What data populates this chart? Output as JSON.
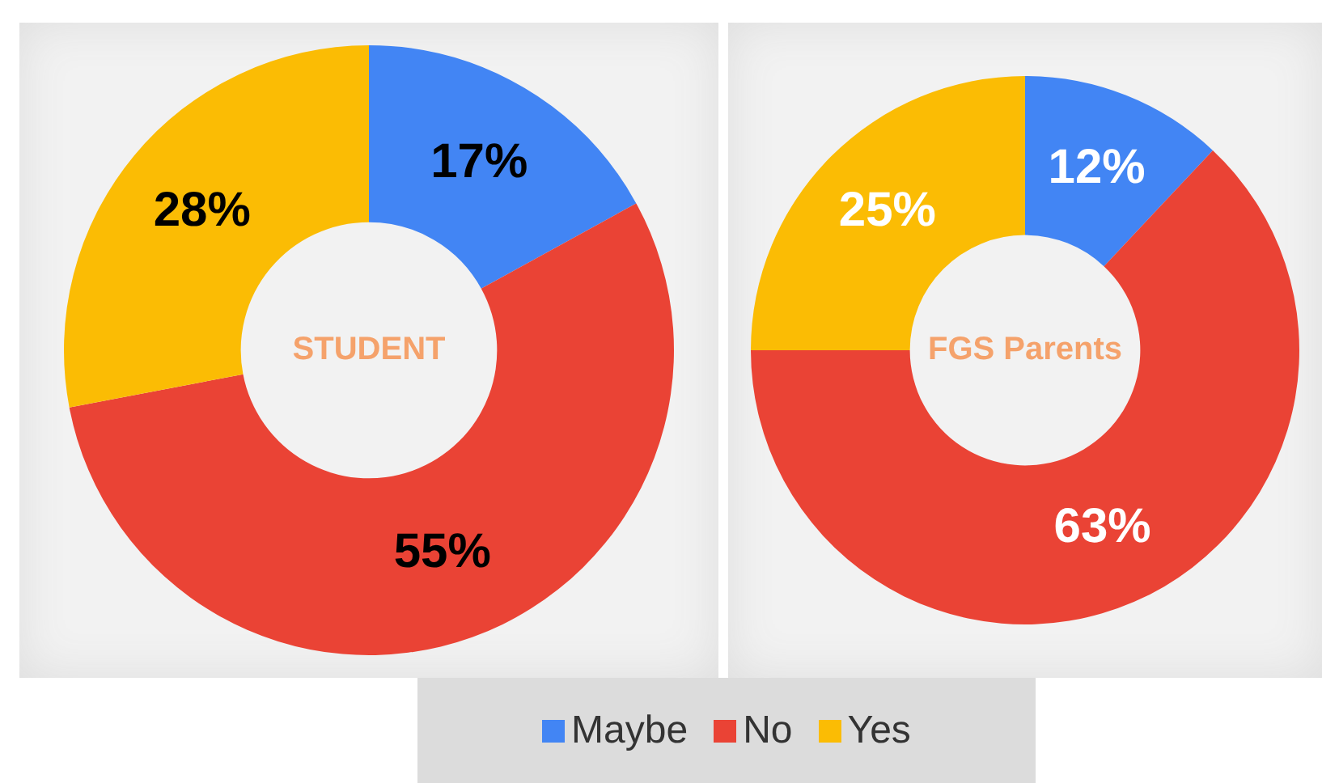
{
  "chart_data": [
    {
      "type": "donut",
      "title": "STUDENT",
      "categories": [
        "Maybe",
        "No",
        "Yes"
      ],
      "values": [
        17,
        55,
        28
      ],
      "colors": [
        "#4285f4",
        "#ea4335",
        "#fbbc04"
      ],
      "data_labels": true,
      "value_labels": [
        "17%",
        "55%",
        "28%"
      ],
      "legend": "bottom"
    },
    {
      "type": "donut",
      "title": "FGS Parents",
      "categories": [
        null,
        null,
        null
      ],
      "values": [
        12,
        63,
        25
      ],
      "colors": [
        "#4285f4",
        "#ea4335",
        "#fbbc04"
      ],
      "data_labels": true,
      "value_labels": [
        "12%",
        "63%",
        "25%"
      ]
    }
  ]
}
